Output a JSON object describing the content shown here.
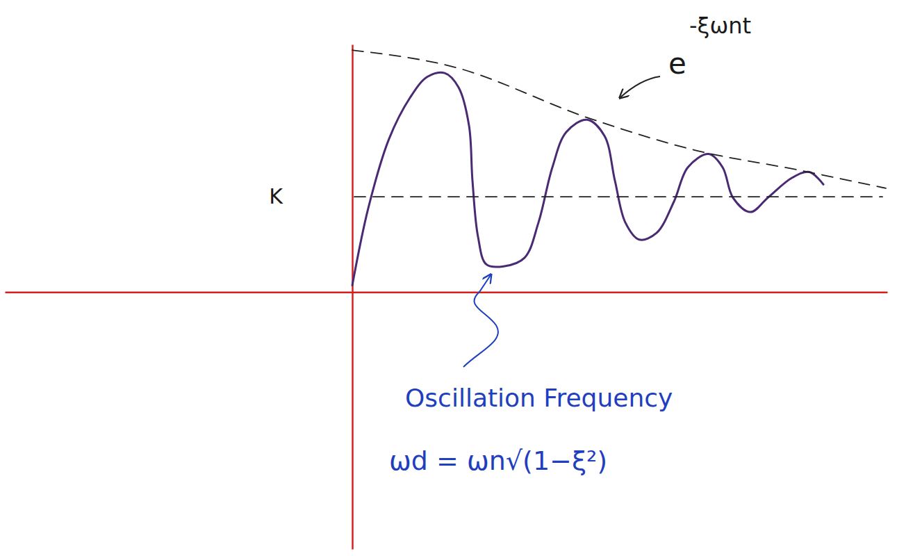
{
  "chart_data": {
    "type": "line",
    "xlim": [
      -5,
      7.7
    ],
    "ylim": [
      -2.7,
      2.6
    ],
    "xticks": [],
    "yticks": [
      {
        "value": 1,
        "label": "K"
      }
    ],
    "tick_labels": "y",
    "series": [
      {
        "color": "#4a2a73",
        "line_style": "solid",
        "x": [
          0,
          0.23,
          0.53,
          0.83,
          1.08,
          1.33,
          1.53,
          1.68,
          1.73,
          1.81,
          1.93,
          2.18,
          2.48,
          2.68,
          2.88,
          3.08,
          3.38,
          3.63,
          3.78,
          3.93,
          4.13,
          4.38,
          4.63,
          4.83,
          5.13,
          5.33,
          5.48,
          5.73,
          5.98,
          6.33,
          6.58,
          6.78
        ],
        "values": [
          0.07,
          0.88,
          1.61,
          2.04,
          2.26,
          2.3,
          2.15,
          1.75,
          1.17,
          0.58,
          0.29,
          0.27,
          0.36,
          0.73,
          1.31,
          1.68,
          1.81,
          1.64,
          1.17,
          0.73,
          0.55,
          0.62,
          0.95,
          1.31,
          1.45,
          1.31,
          0.99,
          0.84,
          0.99,
          1.2,
          1.26,
          1.13
        ]
      },
      {
        "color": "#222222",
        "line_style": "dashed",
        "x": [
          0,
          1.43,
          3.43,
          4.93,
          6.43,
          7.68
        ],
        "values": [
          2.54,
          2.37,
          1.82,
          1.49,
          1.28,
          1.09
        ]
      },
      {
        "color": "#222222",
        "line_style": "dashed",
        "x": [
          0.03,
          7.63
        ],
        "values": [
          1,
          1
        ]
      }
    ],
    "annotations": [
      "e",
      "-ξωnt",
      "Oscillation Frequency",
      "ωd = ωn√(1−ξ²)"
    ]
  }
}
